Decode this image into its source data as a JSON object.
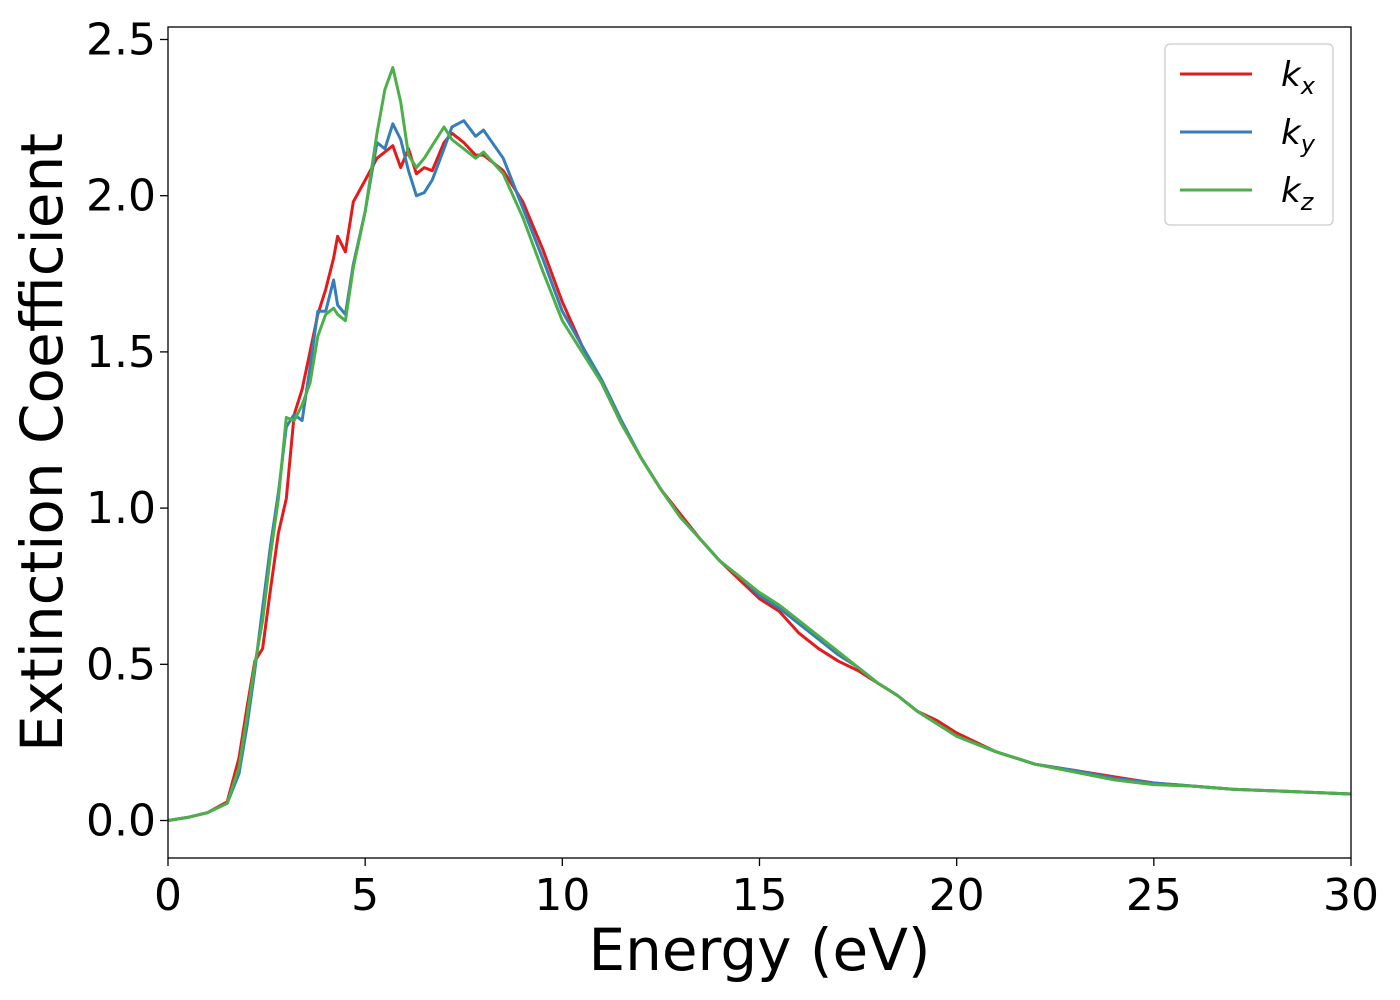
{
  "chart_data": {
    "type": "line",
    "title": "",
    "xlabel": "Energy (eV)",
    "ylabel": "Extinction Coefficient",
    "xlim": [
      0,
      30
    ],
    "ylim": [
      -0.12,
      2.54
    ],
    "xticks": [
      0,
      5,
      10,
      15,
      20,
      25,
      30
    ],
    "xtick_labels": [
      "0",
      "5",
      "10",
      "15",
      "20",
      "25",
      "30"
    ],
    "yticks": [
      0.0,
      0.5,
      1.0,
      1.5,
      2.0,
      2.5
    ],
    "ytick_labels": [
      "0.0",
      "0.5",
      "1.0",
      "1.5",
      "2.0",
      "2.5"
    ],
    "grid": false,
    "legend_position": "top-right",
    "series": [
      {
        "name": "k",
        "subscript": "x",
        "color": "#e41a1c",
        "x": [
          0,
          0.5,
          1.0,
          1.5,
          1.8,
          2.0,
          2.2,
          2.4,
          2.6,
          2.8,
          3.0,
          3.2,
          3.4,
          3.6,
          3.8,
          4.0,
          4.2,
          4.3,
          4.5,
          4.7,
          5.0,
          5.3,
          5.5,
          5.7,
          5.9,
          6.1,
          6.3,
          6.5,
          6.7,
          7.0,
          7.2,
          7.5,
          7.8,
          8.0,
          8.5,
          9.0,
          9.5,
          10.0,
          10.5,
          11.0,
          11.5,
          12.0,
          12.5,
          13.0,
          13.5,
          14.0,
          14.5,
          15.0,
          15.5,
          16.0,
          16.5,
          17.0,
          17.5,
          18.0,
          18.5,
          19.0,
          19.5,
          20.0,
          21.0,
          22.0,
          23.0,
          24.0,
          25.0,
          26.0,
          27.0,
          28.0,
          29.0,
          30.0
        ],
        "y": [
          0.0,
          0.01,
          0.025,
          0.06,
          0.2,
          0.36,
          0.51,
          0.55,
          0.74,
          0.92,
          1.03,
          1.3,
          1.38,
          1.5,
          1.62,
          1.7,
          1.8,
          1.87,
          1.82,
          1.98,
          2.05,
          2.12,
          2.14,
          2.16,
          2.09,
          2.15,
          2.07,
          2.09,
          2.08,
          2.17,
          2.2,
          2.17,
          2.13,
          2.13,
          2.08,
          1.98,
          1.83,
          1.66,
          1.52,
          1.4,
          1.27,
          1.16,
          1.06,
          0.98,
          0.9,
          0.83,
          0.77,
          0.71,
          0.67,
          0.6,
          0.55,
          0.51,
          0.48,
          0.44,
          0.4,
          0.35,
          0.32,
          0.28,
          0.22,
          0.18,
          0.16,
          0.14,
          0.12,
          0.11,
          0.1,
          0.095,
          0.09,
          0.085
        ]
      },
      {
        "name": "k",
        "subscript": "y",
        "color": "#377eb8",
        "x": [
          0,
          0.5,
          1.0,
          1.5,
          1.8,
          2.0,
          2.2,
          2.4,
          2.6,
          2.8,
          3.0,
          3.2,
          3.4,
          3.6,
          3.8,
          4.0,
          4.2,
          4.3,
          4.5,
          4.7,
          5.0,
          5.3,
          5.5,
          5.7,
          5.9,
          6.1,
          6.3,
          6.5,
          6.7,
          7.0,
          7.2,
          7.5,
          7.8,
          8.0,
          8.5,
          9.0,
          9.5,
          10.0,
          10.5,
          11.0,
          11.5,
          12.0,
          12.5,
          13.0,
          13.5,
          14.0,
          14.5,
          15.0,
          15.5,
          16.0,
          16.5,
          17.0,
          17.5,
          18.0,
          18.5,
          19.0,
          19.5,
          20.0,
          21.0,
          22.0,
          23.0,
          24.0,
          25.0,
          26.0,
          27.0,
          28.0,
          29.0,
          30.0
        ],
        "y": [
          0.0,
          0.01,
          0.025,
          0.055,
          0.15,
          0.3,
          0.48,
          0.68,
          0.88,
          1.05,
          1.26,
          1.3,
          1.28,
          1.45,
          1.63,
          1.63,
          1.73,
          1.65,
          1.62,
          1.78,
          1.95,
          2.17,
          2.15,
          2.23,
          2.18,
          2.08,
          2.0,
          2.01,
          2.05,
          2.15,
          2.22,
          2.24,
          2.19,
          2.21,
          2.12,
          1.96,
          1.8,
          1.63,
          1.52,
          1.41,
          1.28,
          1.16,
          1.06,
          0.97,
          0.9,
          0.83,
          0.78,
          0.72,
          0.68,
          0.63,
          0.58,
          0.53,
          0.49,
          0.44,
          0.4,
          0.35,
          0.31,
          0.27,
          0.22,
          0.18,
          0.16,
          0.135,
          0.12,
          0.11,
          0.1,
          0.095,
          0.09,
          0.085
        ]
      },
      {
        "name": "k",
        "subscript": "z",
        "color": "#4daf4a",
        "x": [
          0,
          0.5,
          1.0,
          1.5,
          1.8,
          2.0,
          2.2,
          2.4,
          2.6,
          2.8,
          3.0,
          3.2,
          3.4,
          3.6,
          3.8,
          4.0,
          4.2,
          4.3,
          4.5,
          4.7,
          5.0,
          5.3,
          5.5,
          5.7,
          5.9,
          6.1,
          6.3,
          6.5,
          6.7,
          7.0,
          7.2,
          7.5,
          7.8,
          8.0,
          8.5,
          9.0,
          9.5,
          10.0,
          10.5,
          11.0,
          11.5,
          12.0,
          12.5,
          13.0,
          13.5,
          14.0,
          14.5,
          15.0,
          15.5,
          16.0,
          16.5,
          17.0,
          17.5,
          18.0,
          18.5,
          19.0,
          19.5,
          20.0,
          21.0,
          22.0,
          23.0,
          24.0,
          25.0,
          26.0,
          27.0,
          28.0,
          29.0,
          30.0
        ],
        "y": [
          0.0,
          0.01,
          0.025,
          0.055,
          0.17,
          0.33,
          0.5,
          0.64,
          0.85,
          1.03,
          1.29,
          1.28,
          1.33,
          1.4,
          1.55,
          1.62,
          1.64,
          1.62,
          1.6,
          1.77,
          1.95,
          2.2,
          2.34,
          2.41,
          2.3,
          2.13,
          2.09,
          2.12,
          2.16,
          2.22,
          2.18,
          2.15,
          2.12,
          2.14,
          2.07,
          1.93,
          1.76,
          1.6,
          1.5,
          1.4,
          1.27,
          1.16,
          1.06,
          0.97,
          0.9,
          0.83,
          0.78,
          0.73,
          0.69,
          0.64,
          0.59,
          0.54,
          0.49,
          0.44,
          0.4,
          0.35,
          0.31,
          0.27,
          0.22,
          0.18,
          0.155,
          0.13,
          0.115,
          0.11,
          0.1,
          0.095,
          0.09,
          0.085
        ]
      }
    ]
  }
}
